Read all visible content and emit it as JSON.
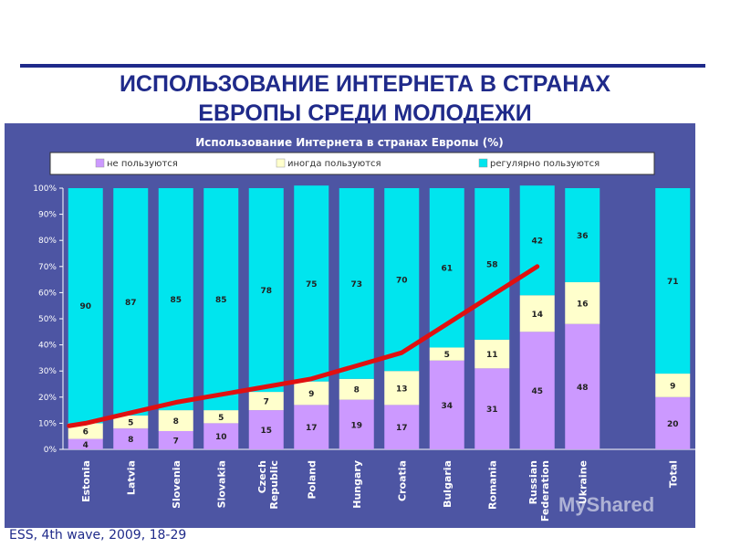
{
  "slide_title_line1": "ИСПОЛЬЗОВАНИЕ ИНТЕРНЕТА В СТРАНАХ",
  "slide_title_line2": "ЕВРОПЫ СРЕДИ МОЛОДЕЖИ",
  "source": "ESS, 4th wave, 2009, 18-29",
  "watermark": "MyShared",
  "chart_data": {
    "type": "bar",
    "stacked": true,
    "percent": true,
    "title": "Использование Интернета в странах Европы (%)",
    "categories": [
      "Estonia",
      "Latvia",
      "Slovenia",
      "Slovakia",
      "Czech Republic",
      "Poland",
      "Hungary",
      "Croatia",
      "Bulgaria",
      "Romania",
      "Russian Federation",
      "Ukraine",
      "",
      "Total"
    ],
    "series": [
      {
        "name": "не пользуются",
        "color": "#cc99ff",
        "values": [
          4,
          8,
          7,
          10,
          15,
          17,
          19,
          17,
          34,
          31,
          45,
          48,
          null,
          20
        ]
      },
      {
        "name": "иногда пользуются",
        "color": "#ffffcc",
        "values": [
          6,
          5,
          8,
          5,
          7,
          9,
          8,
          13,
          5,
          11,
          14,
          16,
          null,
          9
        ]
      },
      {
        "name": "регулярно пользуются",
        "color": "#00e5ee",
        "values": [
          90,
          87,
          85,
          85,
          78,
          75,
          73,
          70,
          61,
          58,
          42,
          36,
          null,
          71
        ]
      }
    ],
    "trend_line": {
      "color": "#e01010",
      "values": [
        10,
        14,
        18,
        21,
        24,
        27,
        32,
        37,
        48,
        59,
        70
      ]
    },
    "yticks": [
      "0%",
      "10%",
      "20%",
      "30%",
      "40%",
      "50%",
      "60%",
      "70%",
      "80%",
      "90%",
      "100%"
    ],
    "ylim": [
      0,
      100
    ],
    "legend_position": "top"
  }
}
